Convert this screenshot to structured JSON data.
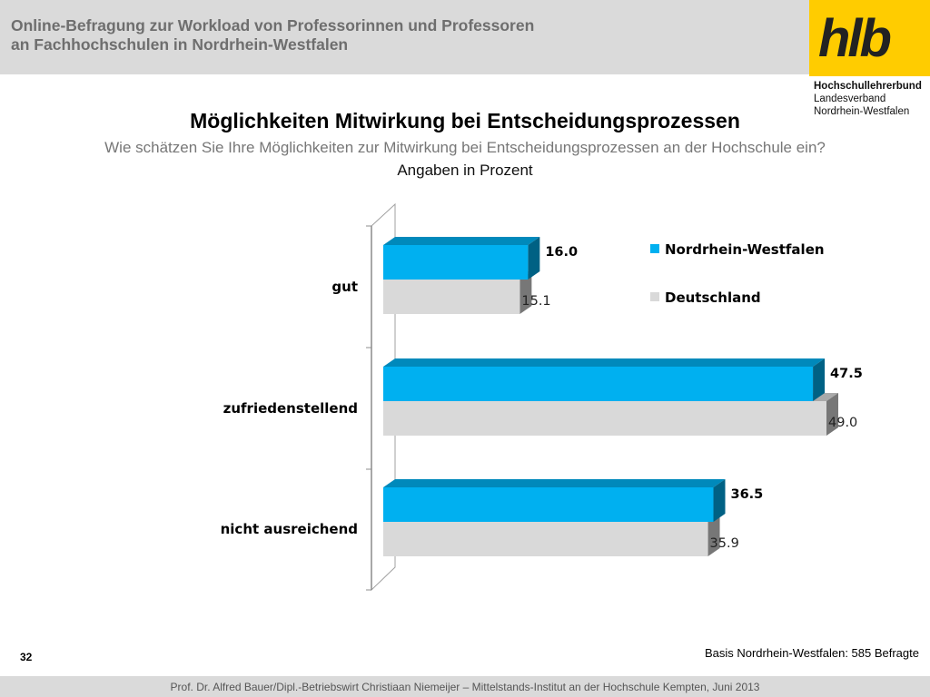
{
  "header": {
    "title_line1": "Online-Befragung  zur  Workload von Professorinnen und Professoren",
    "title_line2": "an Fachhochschulen in Nordrhein-Westfalen",
    "logo_text": "hlb",
    "org_line1": "Hochschullehrerbund",
    "org_line2": "Landesverband",
    "org_line3": "Nordrhein-Westfalen",
    "logo_color": "#ffcc00"
  },
  "slide": {
    "title": "Möglichkeiten Mitwirkung bei Entscheidungsprozessen",
    "subtitle": "Wie schätzen Sie Ihre Möglichkeiten zur Mitwirkung bei Entscheidungsprozessen an der Hochschule ein?",
    "unit_note": "Angaben in Prozent",
    "basis": "Basis Nordrhein-Westfalen: 585 Befragte",
    "page_number": "32"
  },
  "footer": {
    "text": "Prof. Dr. Alfred Bauer/Dipl.-Betriebswirt Christiaan Niemeijer – Mittelstands-Institut an der Hochschule Kempten, Juni 2013"
  },
  "chart_data": {
    "type": "bar",
    "orientation": "horizontal",
    "style": "3d",
    "categories": [
      "gut",
      "zufriedenstellend",
      "nicht ausreichend"
    ],
    "series": [
      {
        "name": "Nordrhein-Westfalen",
        "values": [
          16.0,
          47.5,
          36.5
        ],
        "color": "#00b0f0",
        "labels": [
          "16.0",
          "47.5",
          "36.5"
        ]
      },
      {
        "name": "Deutschland",
        "values": [
          15.1,
          49.0,
          35.9
        ],
        "color": "#d9d9d9",
        "labels": [
          "15.1",
          "49.0",
          "35.9"
        ]
      }
    ],
    "xlim": [
      0,
      50
    ],
    "grid": false,
    "legend_position": "right"
  }
}
